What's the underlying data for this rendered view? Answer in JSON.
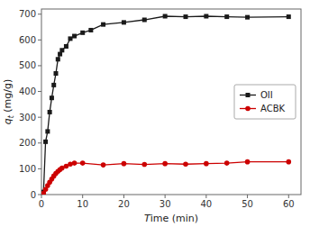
{
  "chart_data": {
    "type": "line",
    "xlabel": "Time (min)",
    "ylabel": "qt (mg/g)",
    "series": [
      {
        "name": "OII",
        "color": "#1a1a1a",
        "marker": "square",
        "x": [
          0.5,
          1,
          1.5,
          2,
          2.5,
          3,
          3.5,
          4,
          4.5,
          5,
          6,
          7,
          8,
          10,
          12,
          15,
          20,
          25,
          30,
          35,
          40,
          45,
          50,
          60
        ],
        "values": [
          10,
          205,
          245,
          320,
          375,
          425,
          470,
          525,
          545,
          560,
          575,
          605,
          615,
          628,
          638,
          660,
          668,
          678,
          692,
          690,
          692,
          690,
          688,
          690
        ]
      },
      {
        "name": "ACBK",
        "color": "#cc0000",
        "marker": "circle",
        "x": [
          0.5,
          1,
          1.5,
          2,
          2.5,
          3,
          3.5,
          4,
          4.5,
          5,
          6,
          7,
          8,
          10,
          15,
          20,
          25,
          30,
          35,
          40,
          45,
          50,
          60
        ],
        "values": [
          5,
          20,
          35,
          48,
          60,
          72,
          82,
          90,
          97,
          103,
          110,
          118,
          122,
          122,
          115,
          120,
          117,
          120,
          118,
          120,
          122,
          127,
          127
        ]
      }
    ],
    "xlim": [
      0,
      63
    ],
    "ylim": [
      0,
      720
    ],
    "xticks": [
      0,
      10,
      20,
      30,
      40,
      50,
      60
    ],
    "yticks": [
      0,
      100,
      200,
      300,
      400,
      500,
      600,
      700
    ],
    "grid": false,
    "legend": "right"
  }
}
